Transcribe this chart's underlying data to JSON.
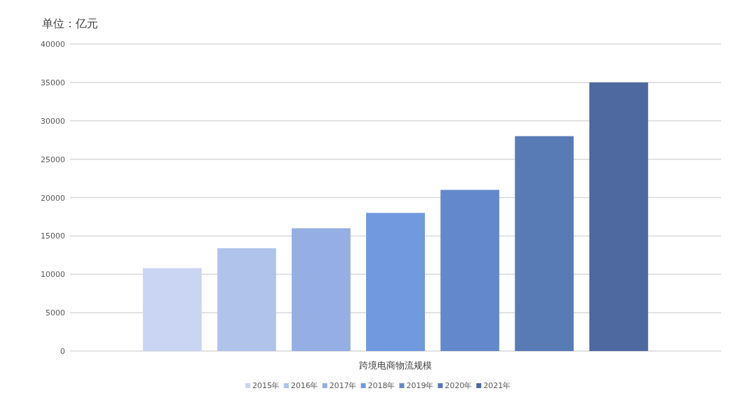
{
  "chart_data": {
    "type": "bar",
    "ylabel": "单位：亿元",
    "categories": [
      "跨境电商物流规模"
    ],
    "series": [
      {
        "name": "2015年",
        "color": "#c9d5f2",
        "values": [
          10800
        ]
      },
      {
        "name": "2016年",
        "color": "#b0c3ea",
        "values": [
          13400
        ]
      },
      {
        "name": "2017年",
        "color": "#95aee3",
        "values": [
          16000
        ]
      },
      {
        "name": "2018年",
        "color": "#7099df",
        "values": [
          18000
        ]
      },
      {
        "name": "2019年",
        "color": "#6389cc",
        "values": [
          21000
        ]
      },
      {
        "name": "2020年",
        "color": "#587bb6",
        "values": [
          28000
        ]
      },
      {
        "name": "2021年",
        "color": "#4e699f",
        "values": [
          35000
        ]
      }
    ],
    "ylim": [
      0,
      40000
    ],
    "yticks": [
      0,
      5000,
      10000,
      15000,
      20000,
      25000,
      30000,
      35000,
      40000
    ],
    "grid": "y",
    "legend": "bottom"
  }
}
